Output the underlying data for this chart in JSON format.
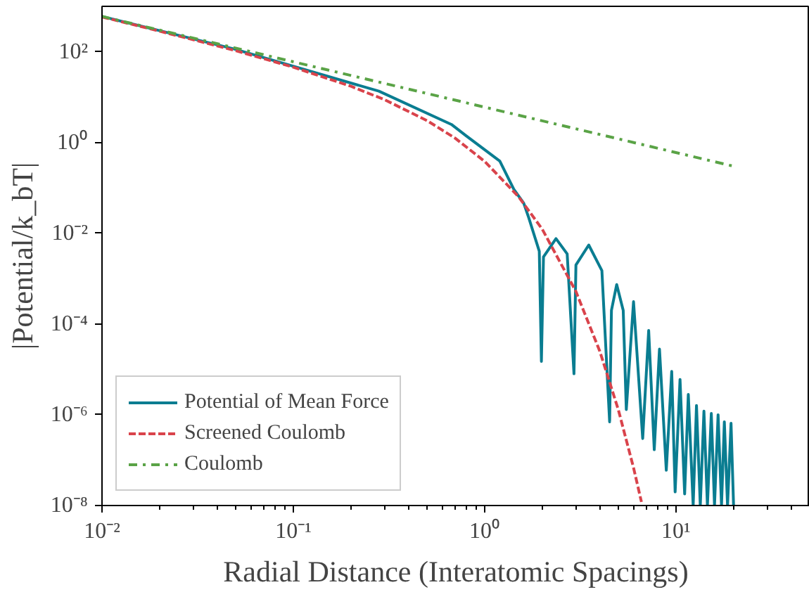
{
  "chart_data": {
    "type": "line",
    "xlabel": "Radial Distance (Interatomic Spacings)",
    "ylabel": "|Potential/k_bT|",
    "log": "xy",
    "xlim": [
      0.01,
      50
    ],
    "ylim": [
      1e-08,
      1000
    ],
    "xticks": [
      {
        "value": 0.01,
        "label": "10⁻²"
      },
      {
        "value": 0.1,
        "label": "10⁻¹"
      },
      {
        "value": 1,
        "label": "10⁰"
      },
      {
        "value": 10,
        "label": "10¹"
      }
    ],
    "yticks": [
      {
        "value": 1e-08,
        "label": "10⁻⁸"
      },
      {
        "value": 1e-06,
        "label": "10⁻⁶"
      },
      {
        "value": 0.0001,
        "label": "10⁻⁴"
      },
      {
        "value": 0.01,
        "label": "10⁻²"
      },
      {
        "value": 1,
        "label": "10⁰"
      },
      {
        "value": 100,
        "label": "10²"
      }
    ],
    "legend": "bottom left",
    "grid": false,
    "series": [
      {
        "name": "Potential of Mean Force",
        "color": "#0a7d91",
        "line_style": "solid",
        "x": [
          0.01,
          0.049,
          0.28,
          0.67,
          0.8,
          1.2,
          1.42,
          1.6,
          1.7,
          1.93,
          1.98,
          2.03,
          2.36,
          2.7,
          2.93,
          3.0,
          3.5,
          4.1,
          4.5,
          4.6,
          4.9,
          5.3,
          5.5,
          6.0,
          6.7,
          7.2,
          7.7,
          8.2,
          8.9,
          9.5,
          9.9,
          10.5,
          11.1,
          11.6,
          12.3,
          12.8,
          13.4,
          14.0,
          14.6,
          15.3,
          15.9,
          16.6,
          17.3,
          17.9,
          18.6,
          19.4,
          20
        ],
        "values": [
          600,
          115,
          13.5,
          2.5,
          1.4,
          0.39,
          0.093,
          0.046,
          0.022,
          0.004,
          1.5e-05,
          0.003,
          0.0076,
          0.0035,
          8e-06,
          0.002,
          0.0055,
          0.0015,
          7e-07,
          0.0002,
          0.00074,
          0.0002,
          1.3e-06,
          0.00031,
          3e-07,
          7.2e-05,
          1.7e-07,
          2.8e-05,
          6e-08,
          9e-06,
          2e-08,
          6e-06,
          1.8e-08,
          2.8e-06,
          1e-08,
          1.6e-06,
          1e-08,
          1.2e-06,
          1e-08,
          1.07e-06,
          1e-08,
          1e-06,
          1e-08,
          7e-07,
          1e-08,
          6.5e-07,
          1e-08
        ]
      },
      {
        "name": "Screened Coulomb",
        "color": "#d9434b",
        "line_style": "dashed",
        "x": [
          0.01,
          0.02,
          0.05,
          0.1,
          0.2,
          0.3,
          0.5,
          0.7,
          1,
          1.5,
          2,
          3,
          4,
          5,
          6,
          6.6
        ],
        "values": [
          584,
          284,
          105,
          45.6,
          17.3,
          8.76,
          3.03,
          1.25,
          0.383,
          0.0647,
          0.0123,
          0.00052,
          2.5e-05,
          1.28e-06,
          6.8e-08,
          1.2e-08
        ]
      },
      {
        "name": "Coulomb",
        "color": "#5aa346",
        "line_style": "dashdot",
        "x": [
          0.01,
          20
        ],
        "values": [
          600,
          0.3
        ]
      }
    ]
  }
}
